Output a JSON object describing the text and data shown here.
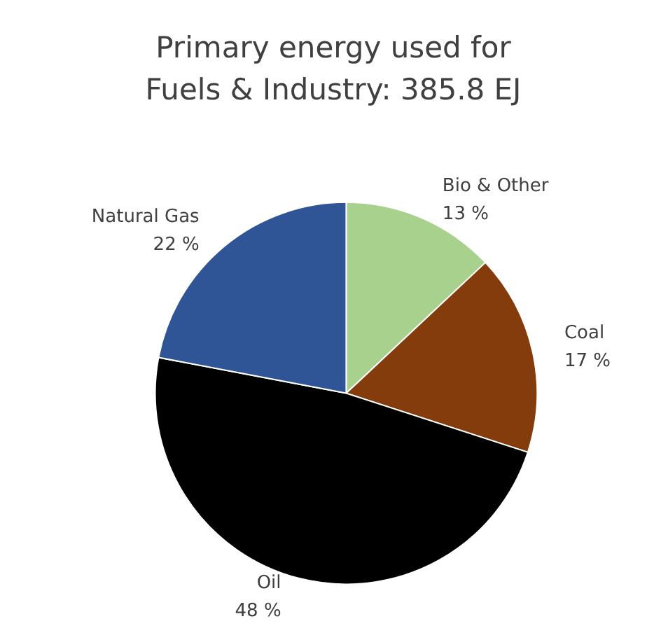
{
  "chart_data": {
    "type": "pie",
    "title": "Primary energy used for\nFuels & Industry: 385.8 EJ",
    "categories": [
      "Bio & Other",
      "Coal",
      "Oil",
      "Natural Gas"
    ],
    "values": [
      13,
      17,
      48,
      22
    ],
    "colors": [
      "#a9d18e",
      "#843c0c",
      "#000000",
      "#2f5597"
    ],
    "value_labels": [
      "13 %",
      "17 %",
      "48 %",
      "22 %"
    ],
    "legend": false
  }
}
